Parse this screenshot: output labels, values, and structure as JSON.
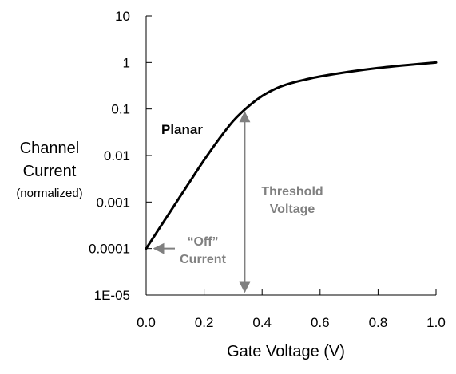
{
  "chart_data": {
    "type": "line",
    "title": "",
    "xlabel": "Gate Voltage (V)",
    "ylabel_lines": [
      "Channel",
      "Current"
    ],
    "ylabel_sub": "(normalized)",
    "x_ticks": [
      "0.0",
      "0.2",
      "0.4",
      "0.6",
      "0.8",
      "1.0"
    ],
    "x_tick_values": [
      0,
      0.2,
      0.4,
      0.6,
      0.8,
      1.0
    ],
    "y_ticks": [
      "10",
      "1",
      "0.1",
      "0.01",
      "0.001",
      "0.0001",
      "1E-05"
    ],
    "y_tick_values": [
      10,
      1,
      0.1,
      0.01,
      0.001,
      0.0001,
      1e-05
    ],
    "xlim": [
      0,
      1.0
    ],
    "ylim": [
      1e-05,
      10
    ],
    "yscale": "log",
    "grid": false,
    "series": [
      {
        "name": "Planar",
        "x": [
          0,
          0.05,
          0.1,
          0.15,
          0.2,
          0.25,
          0.3,
          0.35,
          0.4,
          0.45,
          0.5,
          0.55,
          0.6,
          0.7,
          0.8,
          0.9,
          1.0
        ],
        "y": [
          0.0001,
          0.0003,
          0.0009,
          0.0027,
          0.008,
          0.022,
          0.055,
          0.11,
          0.19,
          0.28,
          0.36,
          0.43,
          0.5,
          0.63,
          0.76,
          0.88,
          1.0
        ]
      }
    ],
    "annotations": {
      "threshold": {
        "lines": [
          "Threshold",
          "Voltage"
        ],
        "x": 0.34,
        "y_from": 0.1,
        "y_to": 1e-05
      },
      "off_current": {
        "lines": [
          "“Off”",
          "Current"
        ],
        "x": 0.0,
        "y": 0.0001
      }
    },
    "colors": {
      "curve": "#000000",
      "annotation": "#808080",
      "axis": "#000000"
    }
  }
}
